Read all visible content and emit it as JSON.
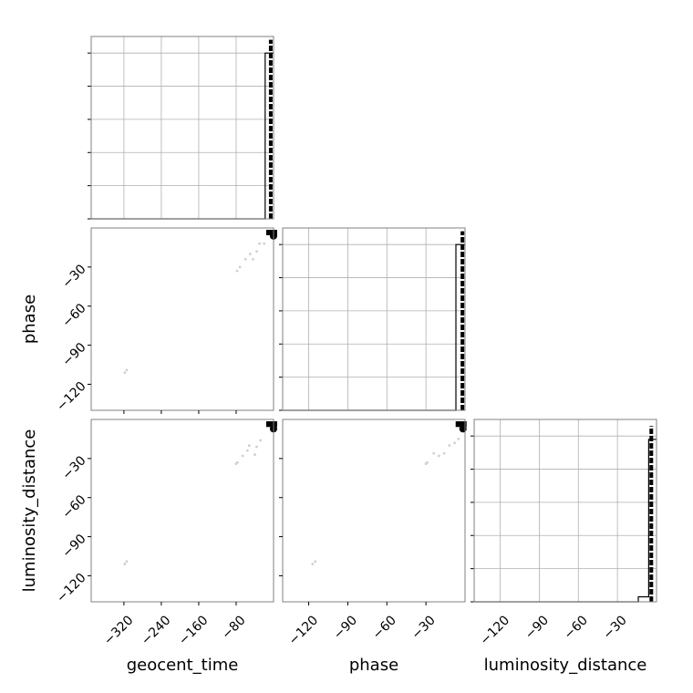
{
  "chart_data": {
    "type": "scatter",
    "layout": "corner",
    "parameters": [
      "geocent_time",
      "phase",
      "luminosity_distance"
    ],
    "axis_labels": {
      "geocent_time": "geocent_time",
      "phase": "phase",
      "luminosity_distance": "luminosity_distance"
    },
    "ranges": {
      "geocent_time": [
        -390,
        0
      ],
      "phase": [
        -140,
        0
      ],
      "luminosity_distance": [
        -140,
        0
      ]
    },
    "ticks": {
      "geocent_time": [
        -320,
        -240,
        -160,
        -80
      ],
      "phase": [
        -120,
        -90,
        -60,
        -30
      ],
      "luminosity_distance": [
        -120,
        -90,
        -60,
        -30
      ]
    },
    "tick_labels": {
      "geocent_time": [
        "−320",
        "−240",
        "−160",
        "−80"
      ],
      "phase": [
        "−120",
        "−90",
        "−60",
        "−30"
      ],
      "luminosity_distance": [
        "−120",
        "−90",
        "−60",
        "−30"
      ]
    },
    "grid": true,
    "colors": {
      "samples": "#000000",
      "outliers": "#d0d0d0",
      "frame": "#808080",
      "grid": "#b0b0b0"
    },
    "histograms": {
      "geocent_time": {
        "solid_step": [
          [
            -390,
            0
          ],
          [
            -18,
            0
          ],
          [
            -18,
            1
          ],
          [
            0,
            1
          ]
        ],
        "dashed_line_x": -6,
        "dashed_top": 1.08
      },
      "phase": {
        "solid_step": [
          [
            -140,
            0
          ],
          [
            -7,
            0
          ],
          [
            -7,
            1
          ],
          [
            0,
            1
          ]
        ],
        "dashed_line_x": -2,
        "dashed_top": 1.08
      },
      "luminosity_distance": {
        "solid_step": [
          [
            -140,
            0
          ],
          [
            -14,
            0
          ],
          [
            -14,
            0.03
          ],
          [
            -6,
            0.03
          ],
          [
            -6,
            0.98
          ],
          [
            0,
            0.98
          ]
        ],
        "dashed_line_x": -4,
        "dashed_top": 1.06
      }
    },
    "pairs": [
      {
        "x": "geocent_time",
        "y": "phase",
        "points": [
          [
            -78,
            -33
          ],
          [
            -72,
            -30
          ],
          [
            -60,
            -24
          ],
          [
            -50,
            -20
          ],
          [
            -44,
            -24
          ],
          [
            -36,
            -18
          ],
          [
            -30,
            -12
          ],
          [
            -20,
            -12
          ],
          [
            -318,
            -111
          ],
          [
            -314,
            -109
          ]
        ],
        "dense": [
          -4,
          -2
        ]
      },
      {
        "x": "geocent_time",
        "y": "luminosity_distance",
        "points": [
          [
            -80,
            -34
          ],
          [
            -77,
            -33
          ],
          [
            -66,
            -28
          ],
          [
            -56,
            -24
          ],
          [
            -52,
            -20
          ],
          [
            -40,
            -27
          ],
          [
            -36,
            -21
          ],
          [
            -28,
            -16
          ],
          [
            -318,
            -111
          ],
          [
            -314,
            -109
          ]
        ],
        "dense": [
          -4,
          -3
        ]
      },
      {
        "x": "phase",
        "y": "luminosity_distance",
        "points": [
          [
            -30,
            -34
          ],
          [
            -29,
            -33
          ],
          [
            -24,
            -26
          ],
          [
            -20,
            -28
          ],
          [
            -16,
            -26
          ],
          [
            -12,
            -20
          ],
          [
            -8,
            -18
          ],
          [
            -5,
            -15
          ],
          [
            -117,
            -111
          ],
          [
            -115,
            -109
          ]
        ],
        "dense": [
          -3,
          -3
        ]
      }
    ]
  }
}
